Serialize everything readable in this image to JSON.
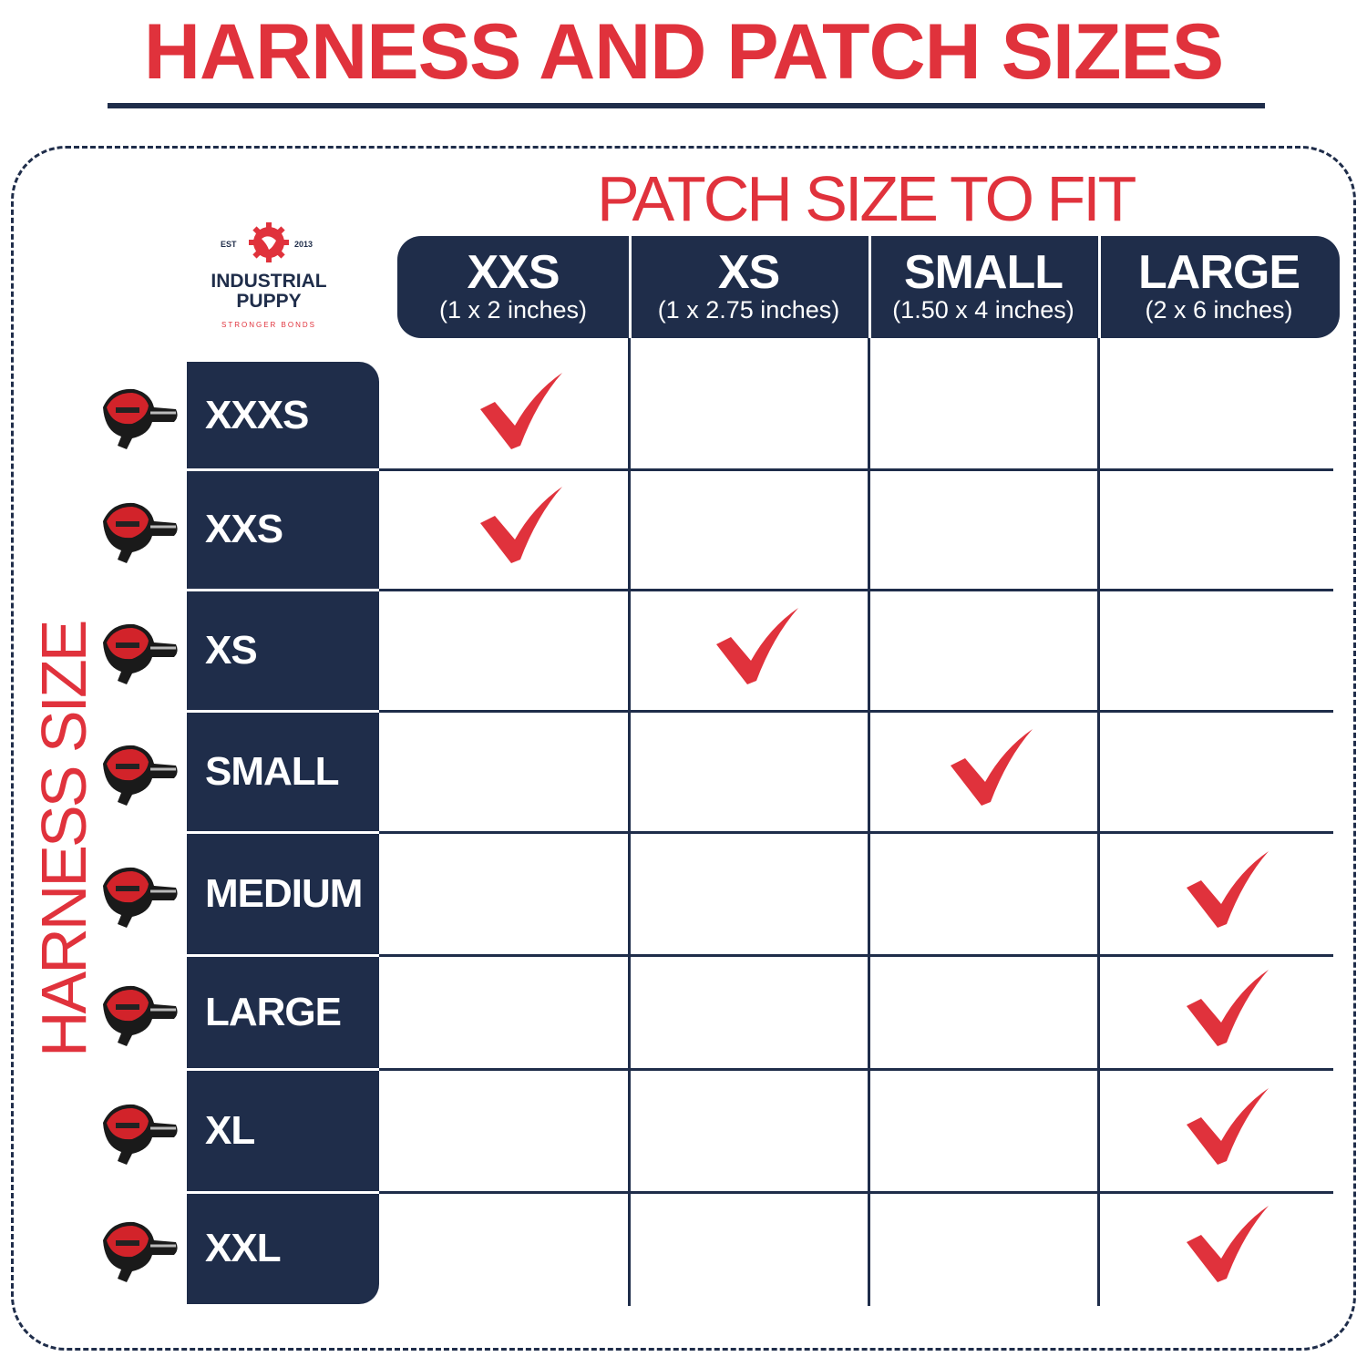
{
  "title": "HARNESS AND PATCH SIZES",
  "patch_axis_title": "PATCH SIZE TO FIT",
  "harness_axis_title": "HARNESS SIZE",
  "logo": {
    "est": "EST",
    "year": "2013",
    "name_line1": "INDUSTRIAL",
    "name_line2": "PUPPY",
    "tagline": "STRONGER BONDS"
  },
  "colors": {
    "accent": "#e0323c",
    "navy": "#1f2d4a"
  },
  "patch_sizes": [
    {
      "name": "XXS",
      "dims": "(1 x 2 inches)"
    },
    {
      "name": "XS",
      "dims": "(1 x 2.75 inches)"
    },
    {
      "name": "SMALL",
      "dims": "(1.50 x 4 inches)"
    },
    {
      "name": "LARGE",
      "dims": "(2 x 6 inches)"
    }
  ],
  "harness_sizes": [
    {
      "name": "XXXS",
      "patch": "XXS"
    },
    {
      "name": "XXS",
      "patch": "XXS"
    },
    {
      "name": "XS",
      "patch": "XS"
    },
    {
      "name": "SMALL",
      "patch": "SMALL"
    },
    {
      "name": "MEDIUM",
      "patch": "LARGE"
    },
    {
      "name": "LARGE",
      "patch": "LARGE"
    },
    {
      "name": "XL",
      "patch": "LARGE"
    },
    {
      "name": "XXL",
      "patch": "LARGE"
    }
  ],
  "icons": {
    "row": "harness-icon",
    "mark": "checkmark-icon"
  }
}
